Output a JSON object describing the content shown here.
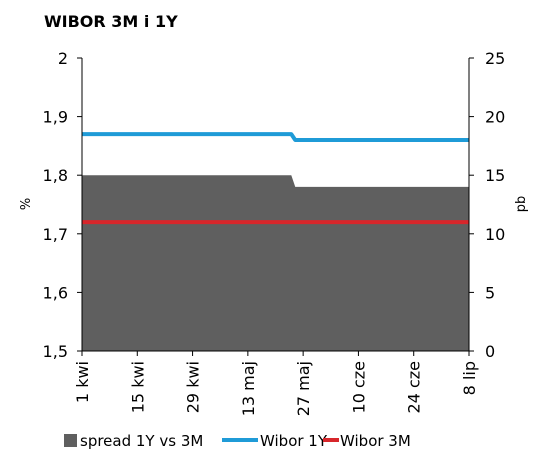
{
  "chart_data": {
    "type": "area",
    "title": "WIBOR 3M i 1Y",
    "ylabel": "%",
    "y2label": "pb",
    "ylim": [
      1.5,
      2.0
    ],
    "y2lim": [
      0,
      25
    ],
    "yticks": [
      "1,5",
      "1,6",
      "1,7",
      "1,8",
      "1,9",
      "2"
    ],
    "y2ticks": [
      "0",
      "5",
      "10",
      "15",
      "20",
      "25"
    ],
    "xticks": [
      "1 kwi",
      "15 kwi",
      "29 kwi",
      "13 maj",
      "27 maj",
      "10 cze",
      "24 cze",
      "8 lip"
    ],
    "x_start": "2016-04-01",
    "x_end": "2016-07-08",
    "grid": false,
    "legend_position": "bottom",
    "series": [
      {
        "name": "spread 1Y vs 3M",
        "type": "area",
        "axis": "right",
        "color": "#5f5f5f",
        "x": [
          "2016-04-01",
          "2016-05-24",
          "2016-05-25",
          "2016-07-08"
        ],
        "values": [
          15,
          15,
          14,
          14
        ]
      },
      {
        "name": "Wibor 1Y",
        "type": "line",
        "axis": "left",
        "color": "#1f9bd7",
        "x": [
          "2016-04-01",
          "2016-05-24",
          "2016-05-25",
          "2016-07-08"
        ],
        "values": [
          1.87,
          1.87,
          1.86,
          1.86
        ]
      },
      {
        "name": "Wibor 3M",
        "type": "line",
        "axis": "left",
        "color": "#d7262b",
        "x": [
          "2016-04-01",
          "2016-07-08"
        ],
        "values": [
          1.72,
          1.72
        ]
      }
    ]
  }
}
